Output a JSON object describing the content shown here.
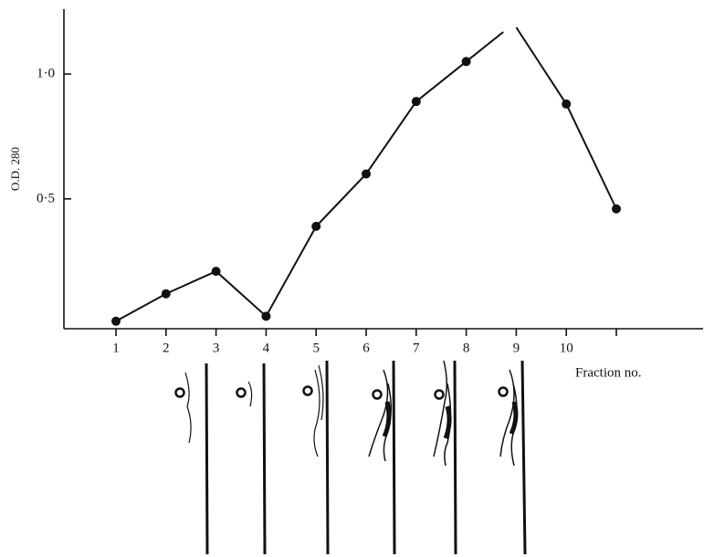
{
  "chart_data": {
    "type": "line",
    "y_label": "O.D. 280",
    "x_label": "Fraction no.",
    "categories": [
      "1",
      "2",
      "3",
      "4",
      "5",
      "6",
      "7",
      "8",
      "9",
      "10",
      null
    ],
    "series": [
      {
        "name": null,
        "color": "#111111",
        "values": [
          0.01,
          0.12,
          0.21,
          0.03,
          0.39,
          0.6,
          0.89,
          1.05,
          null,
          0.88,
          0.46
        ]
      }
    ],
    "ylim": [
      -0.02,
      1.26
    ],
    "yticks": [
      {
        "value": 0.5,
        "label": "0·5"
      },
      {
        "value": 1.0,
        "label": "1·0"
      }
    ]
  }
}
